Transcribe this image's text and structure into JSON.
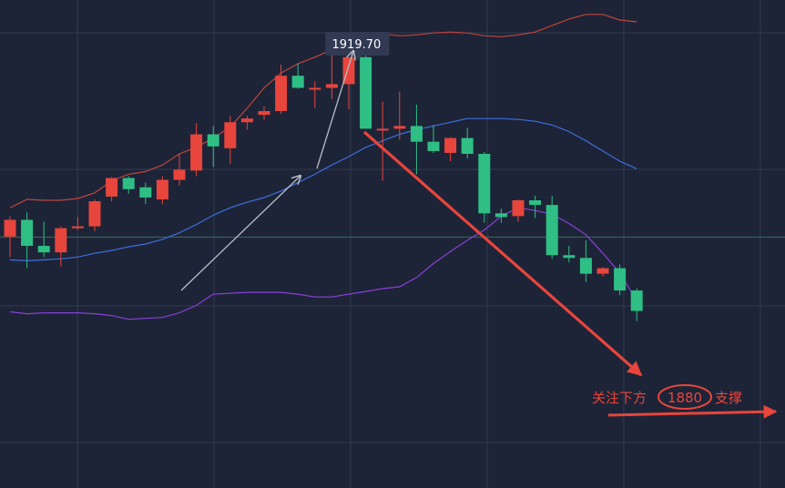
{
  "chart_data": {
    "type": "candlestick",
    "title": "",
    "grid": true,
    "y_range": [
      1826,
      1931
    ],
    "colors": {
      "background": "#1d2437",
      "grid": "#313a4f",
      "up": "#e8453c",
      "down": "#2fbf85",
      "upper_band": "#c0443c",
      "middle_band": "#3d6fdc",
      "lower_band": "#8a3fd8",
      "trend_up_arrow": "#b9bec8",
      "trend_down_arrow": "#e8453c",
      "support_line": "#3a6b5a"
    },
    "peak_label": "1919.70",
    "support_level": 1880,
    "annotation": {
      "prefix": "关注下方",
      "level": "1880",
      "suffix": "支撑"
    },
    "candles": [
      {
        "o": 1880.1,
        "h": 1884.5,
        "l": 1875.7,
        "c": 1883.7
      },
      {
        "o": 1883.7,
        "h": 1885.3,
        "l": 1873.3,
        "c": 1878.1
      },
      {
        "o": 1878.1,
        "h": 1883.3,
        "l": 1875.7,
        "c": 1876.7
      },
      {
        "o": 1876.7,
        "h": 1882.3,
        "l": 1873.7,
        "c": 1881.9
      },
      {
        "o": 1881.9,
        "h": 1884.3,
        "l": 1881.5,
        "c": 1882.3
      },
      {
        "o": 1882.3,
        "h": 1888.1,
        "l": 1881.3,
        "c": 1887.7
      },
      {
        "o": 1888.7,
        "h": 1892.9,
        "l": 1887.7,
        "c": 1892.7
      },
      {
        "o": 1892.7,
        "h": 1893.1,
        "l": 1889.3,
        "c": 1890.3
      },
      {
        "o": 1890.7,
        "h": 1891.7,
        "l": 1887.1,
        "c": 1888.5
      },
      {
        "o": 1888.1,
        "h": 1893.1,
        "l": 1887.1,
        "c": 1892.3
      },
      {
        "o": 1892.3,
        "h": 1897.9,
        "l": 1891.1,
        "c": 1894.5
      },
      {
        "o": 1894.3,
        "h": 1904.5,
        "l": 1893.1,
        "c": 1902.1
      },
      {
        "o": 1902.1,
        "h": 1903.9,
        "l": 1895.1,
        "c": 1899.5
      },
      {
        "o": 1899.1,
        "h": 1906.1,
        "l": 1895.7,
        "c": 1904.7
      },
      {
        "o": 1904.7,
        "h": 1906.1,
        "l": 1903.1,
        "c": 1905.5
      },
      {
        "o": 1906.3,
        "h": 1908.1,
        "l": 1905.3,
        "c": 1907.1
      },
      {
        "o": 1907.1,
        "h": 1917.1,
        "l": 1906.5,
        "c": 1914.7
      },
      {
        "o": 1914.7,
        "h": 1917.3,
        "l": 1911.9,
        "c": 1912.1
      },
      {
        "o": 1911.7,
        "h": 1913.5,
        "l": 1907.7,
        "c": 1912.1
      },
      {
        "o": 1912.1,
        "h": 1919.7,
        "l": 1909.7,
        "c": 1912.9
      },
      {
        "o": 1912.9,
        "h": 1918.7,
        "l": 1907.5,
        "c": 1918.7
      },
      {
        "o": 1918.7,
        "h": 1919.7,
        "l": 1904.3,
        "c": 1903.3
      },
      {
        "o": 1903.3,
        "h": 1909.1,
        "l": 1892.1,
        "c": 1903.3
      },
      {
        "o": 1903.3,
        "h": 1911.3,
        "l": 1900.9,
        "c": 1903.9
      },
      {
        "o": 1903.9,
        "h": 1908.5,
        "l": 1893.5,
        "c": 1900.5
      },
      {
        "o": 1900.5,
        "h": 1904.1,
        "l": 1898.1,
        "c": 1898.5
      },
      {
        "o": 1898.1,
        "h": 1901.5,
        "l": 1896.3,
        "c": 1901.3
      },
      {
        "o": 1901.3,
        "h": 1903.5,
        "l": 1896.9,
        "c": 1897.9
      },
      {
        "o": 1897.9,
        "h": 1898.3,
        "l": 1883.1,
        "c": 1885.1
      },
      {
        "o": 1885.1,
        "h": 1886.1,
        "l": 1883.1,
        "c": 1884.3
      },
      {
        "o": 1884.5,
        "h": 1888.1,
        "l": 1883.3,
        "c": 1887.9
      },
      {
        "o": 1887.9,
        "h": 1888.9,
        "l": 1884.1,
        "c": 1886.9
      },
      {
        "o": 1886.9,
        "h": 1888.9,
        "l": 1875.3,
        "c": 1876.1
      },
      {
        "o": 1876.1,
        "h": 1878.1,
        "l": 1874.5,
        "c": 1875.5
      },
      {
        "o": 1875.5,
        "h": 1879.3,
        "l": 1870.3,
        "c": 1872.1
      },
      {
        "o": 1872.1,
        "h": 1873.5,
        "l": 1871.5,
        "c": 1873.3
      },
      {
        "o": 1873.3,
        "h": 1874.1,
        "l": 1867.5,
        "c": 1868.5
      },
      {
        "o": 1868.5,
        "h": 1868.9,
        "l": 1861.9,
        "c": 1864.1
      }
    ],
    "upper_band": [
      1886.3,
      1888.1,
      1887.9,
      1887.9,
      1888.3,
      1889.5,
      1892.1,
      1893.5,
      1894.1,
      1895.5,
      1897.9,
      1899.3,
      1901.3,
      1903.7,
      1907.7,
      1912.1,
      1915.3,
      1917.3,
      1918.7,
      1920.3,
      1922.3,
      1923.3,
      1923.7,
      1923.3,
      1923.5,
      1923.9,
      1924.1,
      1923.9,
      1923.3,
      1923.1,
      1923.5,
      1924.1,
      1925.5,
      1926.9,
      1927.9,
      1927.9,
      1926.7,
      1926.3
    ],
    "middle_band": [
      1875.1,
      1874.9,
      1875.1,
      1875.3,
      1875.7,
      1876.5,
      1877.1,
      1877.9,
      1878.5,
      1879.5,
      1880.9,
      1882.7,
      1884.7,
      1886.3,
      1887.5,
      1888.5,
      1889.9,
      1891.7,
      1893.5,
      1895.5,
      1897.3,
      1899.3,
      1900.7,
      1902.1,
      1903.1,
      1903.9,
      1904.7,
      1905.5,
      1905.5,
      1905.5,
      1905.3,
      1904.9,
      1904.1,
      1902.7,
      1900.7,
      1898.5,
      1896.3,
      1894.7
    ],
    "lower_band": [
      1863.9,
      1863.5,
      1863.7,
      1863.7,
      1863.7,
      1863.5,
      1863.1,
      1862.3,
      1862.5,
      1862.7,
      1863.7,
      1865.3,
      1867.7,
      1867.9,
      1868.1,
      1868.1,
      1868.1,
      1867.7,
      1867.1,
      1867.1,
      1867.7,
      1868.3,
      1868.9,
      1869.3,
      1871.3,
      1874.3,
      1876.9,
      1879.3,
      1881.5,
      1884.5,
      1886.3,
      1885.7,
      1884.9,
      1882.9,
      1880.5,
      1876.5,
      1872.3,
      1866.3
    ]
  }
}
